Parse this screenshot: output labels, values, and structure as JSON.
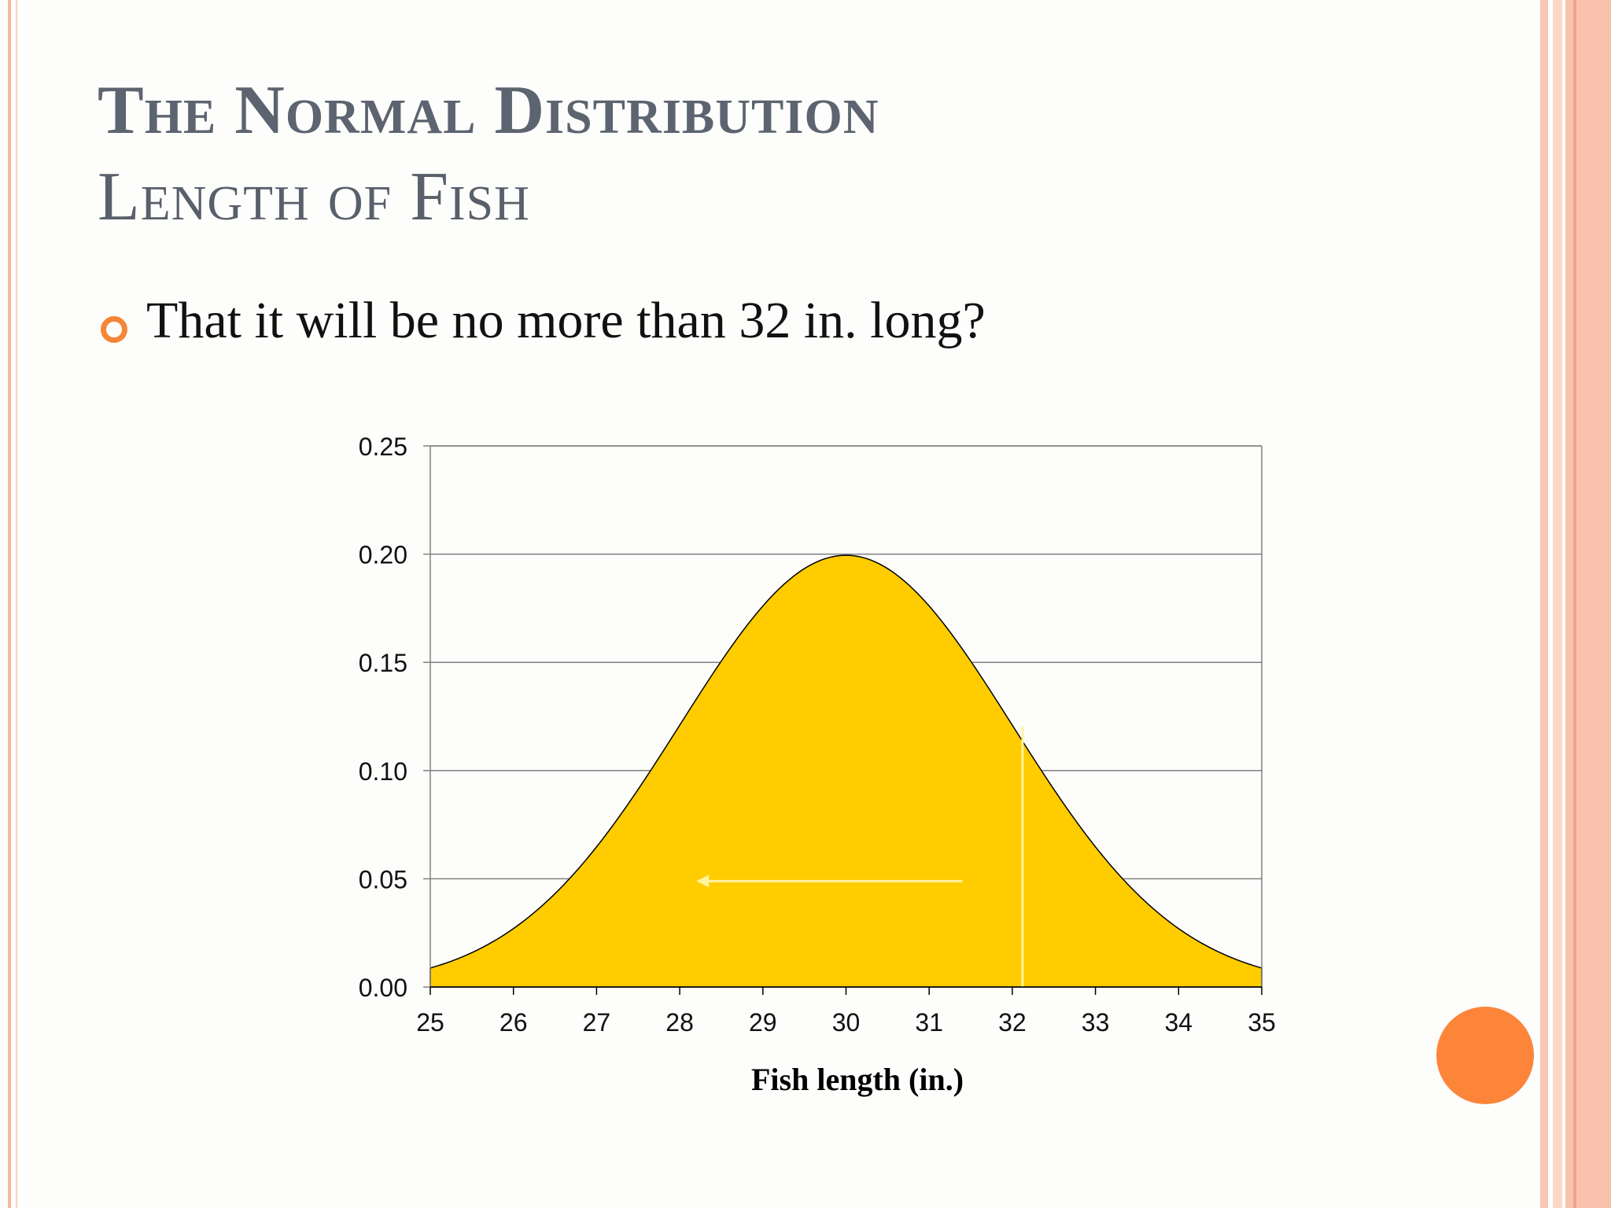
{
  "slide": {
    "title": "The Normal Distribution",
    "subtitle": "Length of Fish",
    "bullet": "That it will be no more than 32 in. long?"
  },
  "colors": {
    "title": "#5c6470",
    "accent": "#f58638",
    "fill": "#ffcc00",
    "marker": "#fff3a0",
    "grid": "#808080"
  },
  "chart_data": {
    "type": "area",
    "title": "",
    "xlabel": "Fish length (in.)",
    "ylabel": "",
    "xlim": [
      25,
      35
    ],
    "ylim": [
      0,
      0.25
    ],
    "xticks": [
      25,
      26,
      27,
      28,
      29,
      30,
      31,
      32,
      33,
      34,
      35
    ],
    "yticks": [
      0.0,
      0.05,
      0.1,
      0.15,
      0.2,
      0.25
    ],
    "ytick_labels": [
      "0.00",
      "0.05",
      "0.10",
      "0.15",
      "0.20",
      "0.25"
    ],
    "grid": "horizontal",
    "distribution": {
      "name": "normal",
      "mean": 30,
      "sd": 2
    },
    "x": [
      25,
      25.5,
      26,
      26.5,
      27,
      27.5,
      28,
      28.5,
      29,
      29.5,
      30,
      30.5,
      31,
      31.5,
      32,
      32.5,
      33,
      33.5,
      34,
      34.5,
      35
    ],
    "y": [
      0.0088,
      0.0159,
      0.027,
      0.0431,
      0.0648,
      0.0913,
      0.121,
      0.1506,
      0.176,
      0.1933,
      0.1995,
      0.1933,
      0.176,
      0.1506,
      0.121,
      0.0913,
      0.0648,
      0.0431,
      0.027,
      0.0159,
      0.0088
    ],
    "threshold_x": 32,
    "arrow": {
      "from_x": 31.4,
      "to_x": 28.2,
      "y": 0.05,
      "direction": "left"
    }
  }
}
